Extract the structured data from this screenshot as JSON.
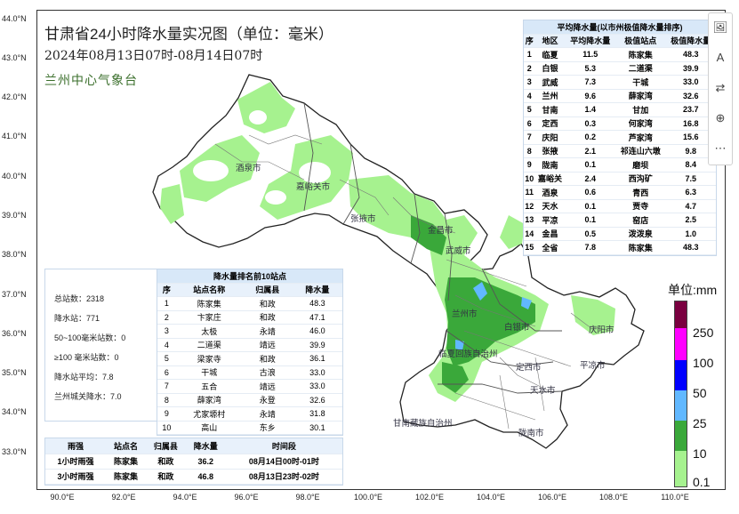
{
  "title": "甘肃省24小时降水量实况图（单位：毫米）",
  "subtitle": "2024年08月13日07时-08月14日07时",
  "agency": "兰州中心气象台",
  "lat_labels": [
    "44.0°N",
    "43.0°N",
    "42.0°N",
    "41.0°N",
    "40.0°N",
    "39.0°N",
    "38.0°N",
    "37.0°N",
    "36.0°N",
    "35.0°N",
    "34.0°N",
    "33.0°N"
  ],
  "lon_labels": [
    "90.0°E",
    "92.0°E",
    "94.0°E",
    "96.0°E",
    "98.0°E",
    "100.0°E",
    "102.0°E",
    "104.0°E",
    "106.0°E",
    "108.0°E",
    "110.0°E"
  ],
  "cities": [
    {
      "name": "酒泉市"
    },
    {
      "name": "嘉峪关市"
    },
    {
      "name": "张掖市"
    },
    {
      "name": "金昌市"
    },
    {
      "name": "武威市"
    },
    {
      "name": "兰州市"
    },
    {
      "name": "白银市"
    },
    {
      "name": "临夏回族自治州"
    },
    {
      "name": "定西市"
    },
    {
      "name": "天水市"
    },
    {
      "name": "甘南藏族自治州"
    },
    {
      "name": "陇南市"
    },
    {
      "name": "庆阳市"
    },
    {
      "name": "平凉市"
    }
  ],
  "avg_table": {
    "title": "平均降水量(以市州极值降水量排序)",
    "headers": [
      "序",
      "地区",
      "平均降水量",
      "极值站点",
      "极值降水量"
    ],
    "rows": [
      [
        "1",
        "临夏",
        "11.5",
        "陈家集",
        "48.3"
      ],
      [
        "2",
        "白银",
        "5.3",
        "二道渠",
        "39.9"
      ],
      [
        "3",
        "武威",
        "7.3",
        "干城",
        "33.0"
      ],
      [
        "4",
        "兰州",
        "9.6",
        "薛家湾",
        "32.6"
      ],
      [
        "5",
        "甘南",
        "1.4",
        "甘加",
        "23.7"
      ],
      [
        "6",
        "定西",
        "0.3",
        "何家湾",
        "16.8"
      ],
      [
        "7",
        "庆阳",
        "0.2",
        "芦家湾",
        "15.6"
      ],
      [
        "8",
        "张掖",
        "2.1",
        "祁连山六墩",
        "9.8"
      ],
      [
        "9",
        "陇南",
        "0.1",
        "磨坝",
        "8.4"
      ],
      [
        "10",
        "嘉峪关",
        "2.4",
        "西沟矿",
        "7.5"
      ],
      [
        "11",
        "酒泉",
        "0.6",
        "青西",
        "6.3"
      ],
      [
        "12",
        "天水",
        "0.1",
        "贾寺",
        "4.7"
      ],
      [
        "13",
        "平凉",
        "0.1",
        "窑店",
        "2.5"
      ],
      [
        "14",
        "金昌",
        "0.5",
        "泼泼泉",
        "1.0"
      ],
      [
        "15",
        "全省",
        "7.8",
        "陈家集",
        "48.3"
      ]
    ]
  },
  "top10_table": {
    "title": "降水量排名前10站点",
    "headers": [
      "序",
      "站点名称",
      "归属县",
      "降水量"
    ],
    "rows": [
      [
        "1",
        "陈家集",
        "和政",
        "48.3"
      ],
      [
        "2",
        "卞家庄",
        "和政",
        "47.1"
      ],
      [
        "3",
        "太极",
        "永靖",
        "46.0"
      ],
      [
        "4",
        "二道渠",
        "靖远",
        "39.9"
      ],
      [
        "5",
        "梁家寺",
        "和政",
        "36.1"
      ],
      [
        "6",
        "干城",
        "古浪",
        "33.0"
      ],
      [
        "7",
        "五合",
        "靖远",
        "33.0"
      ],
      [
        "8",
        "薛家湾",
        "永登",
        "32.6"
      ],
      [
        "9",
        "尤家塬村",
        "永靖",
        "31.8"
      ],
      [
        "10",
        "高山",
        "东乡",
        "30.1"
      ]
    ]
  },
  "stats": [
    "总站数：2318",
    "降水站：771",
    "50~100毫米站数：0",
    "≥100 毫米站数：0",
    "降水站平均：7.8",
    "兰州城关降水：7.0"
  ],
  "intensity_table": {
    "headers": [
      "雨强",
      "站点名",
      "归属县",
      "降水量",
      "时间段"
    ],
    "rows": [
      [
        "1小时雨强",
        "陈家集",
        "和政",
        "36.2",
        "08月14日00时-01时"
      ],
      [
        "3小时雨强",
        "陈家集",
        "和政",
        "46.8",
        "08月13日23时-02时"
      ]
    ]
  },
  "legend": {
    "title": "单位:mm",
    "labels": [
      "250",
      "100",
      "50",
      "25",
      "10",
      "0.1"
    ],
    "colors": [
      "#7a0040",
      "#ff00ff",
      "#0000ff",
      "#61b8ff",
      "#3aa83a",
      "#a6f28f"
    ]
  },
  "toolbar": [
    {
      "icon": "image-edit-icon",
      "glyph": "🖼"
    },
    {
      "icon": "text-edit-icon",
      "glyph": "A"
    },
    {
      "icon": "translate-icon",
      "glyph": "⇄"
    },
    {
      "icon": "zoom-in-icon",
      "glyph": "⊕"
    },
    {
      "icon": "more-icon",
      "glyph": "⋯"
    }
  ]
}
